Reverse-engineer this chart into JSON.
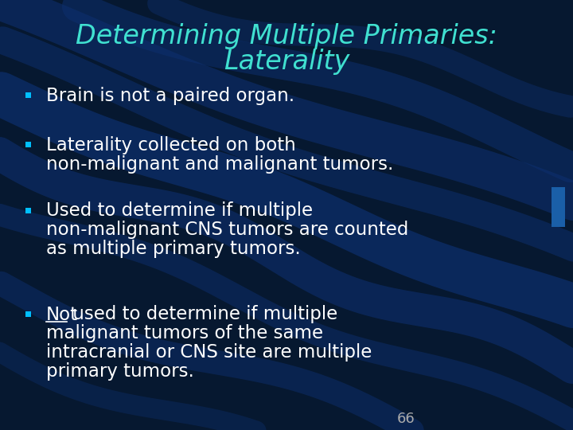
{
  "title_line1": "Determining Multiple Primaries:",
  "title_line2": "Laterality",
  "title_color": "#40E0D0",
  "bullet_color": "#FFFFFF",
  "bullet_marker_color": "#00BFFF",
  "background_color": "#061830",
  "bullet_points": [
    {
      "lines": [
        "Brain is not a paired organ."
      ],
      "underline_word": ""
    },
    {
      "lines": [
        "Laterality collected on both",
        "non-malignant and malignant tumors."
      ],
      "underline_word": ""
    },
    {
      "lines": [
        "Used to determine if multiple",
        "non-malignant CNS tumors are counted",
        "as multiple primary tumors."
      ],
      "underline_word": ""
    },
    {
      "lines": [
        "Not used to determine if multiple",
        "malignant tumors of the same",
        "intracranial or CNS site are multiple",
        "primary tumors."
      ],
      "underline_word": "Not"
    }
  ],
  "page_number": "66",
  "page_number_color": "#AAAAAA",
  "accent_box_color": "#1a5fa8",
  "wave_color": "#0d2f6e",
  "wave_color2": "#0a2557"
}
